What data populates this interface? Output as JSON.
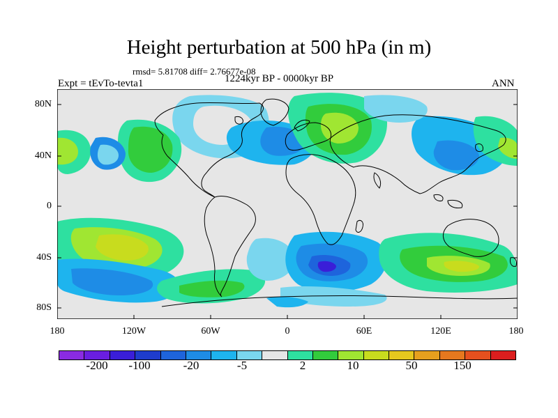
{
  "header": {
    "title": "Height perturbation at 500 hPa (in m)",
    "stats": "rmsd= 5.81708 diff= 2.76677e-08",
    "period": "1224kyr BP - 0000kyr BP",
    "experiment": "Expt = tEvTo-tevta1",
    "season": "ANN"
  },
  "axes": {
    "y_ticks": [
      "80N",
      "40N",
      "0",
      "40S",
      "80S"
    ],
    "x_ticks": [
      "180",
      "120W",
      "60W",
      "0",
      "60E",
      "120E",
      "180"
    ]
  },
  "colorbar": {
    "colors": [
      "#8a2be2",
      "#6a1ee0",
      "#3a1ed8",
      "#1e3ccc",
      "#1e64dc",
      "#1e8ce6",
      "#1eb4ee",
      "#7ad6ee",
      "#e6e6e6",
      "#2ee0a0",
      "#32cc3c",
      "#a0e632",
      "#c8dc1e",
      "#e6c81e",
      "#e6a01e",
      "#e6781e",
      "#e6501e",
      "#dc1e1e"
    ],
    "labels": [
      "-200",
      "-100",
      "-20",
      "-5",
      "2",
      "10",
      "50",
      "150"
    ]
  },
  "colors": {
    "neutral": "#e6e6e6",
    "coastline": "#000000"
  }
}
